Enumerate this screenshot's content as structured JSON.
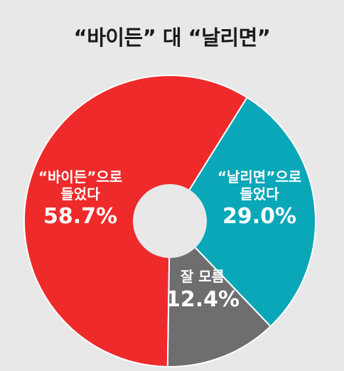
{
  "chart_data": {
    "type": "pie",
    "title": "“바이든” 대 “날리면”",
    "donut": true,
    "slices": [
      {
        "label_line1": "“바이든”으로",
        "label_line2": "들었다",
        "value": 58.7,
        "value_label": "58.7%",
        "color": "#ee2a2b"
      },
      {
        "label_line1": "“날리면”으로",
        "label_line2": "들었다",
        "value": 29.0,
        "value_label": "29.0%",
        "color": "#0aa7b8"
      },
      {
        "label_line1": "잘 모름",
        "label_line2": "",
        "value": 12.4,
        "value_label": "12.4%",
        "color": "#6e6e70"
      }
    ],
    "hole_color": "#e8e8e8",
    "separator_color": "#ffffff"
  }
}
